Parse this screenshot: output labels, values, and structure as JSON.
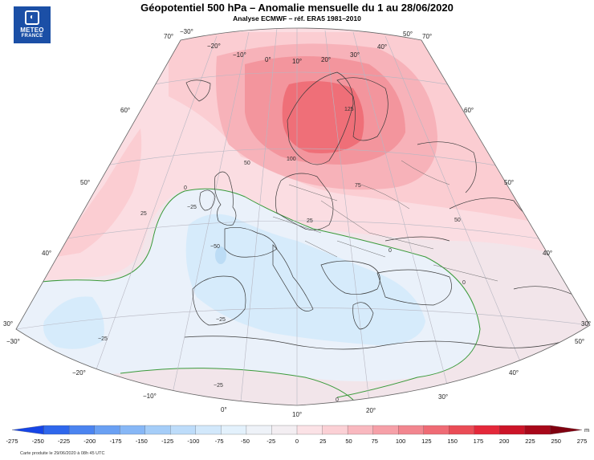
{
  "logo": {
    "line1": "METEO",
    "line2": "FRANCE"
  },
  "title": "Géopotentiel 500 hPa – Anomalie mensuelle du 1 au 28/06/2020",
  "subtitle": "Analyse ECMWF – réf. ERA5 1981–2010",
  "colorbar": {
    "ticks": [
      "-275",
      "-250",
      "-225",
      "-200",
      "-175",
      "-150",
      "-125",
      "-100",
      "-75",
      "-50",
      "-25",
      "0",
      "25",
      "50",
      "75",
      "100",
      "125",
      "150",
      "175",
      "200",
      "225",
      "250",
      "275"
    ],
    "colors": [
      "#1645e6",
      "#2f67ec",
      "#4b84f0",
      "#6aa0f3",
      "#87b7f6",
      "#a5cdf8",
      "#bddcfa",
      "#d2e8fb",
      "#e3f1fc",
      "#eef2f8",
      "#f3eef2",
      "#fbe2e6",
      "#fbd0d5",
      "#f9b8bf",
      "#f6a0a8",
      "#f2868f",
      "#ef6b75",
      "#ea4c56",
      "#e4283a",
      "#cc1428",
      "#a8081a",
      "#800010"
    ],
    "unit": "m",
    "colors_meaning": "anomaly shading"
  },
  "map": {
    "fills": {
      "outer_light": "#f2e5ea",
      "lev25": "#fbdde2",
      "lev50": "#fbcdd2",
      "lev75": "#f7b2b9",
      "lev100": "#f3959d",
      "lev125": "#ef6f78",
      "neg25": "#eaf1fa",
      "neg50": "#d6ebfb",
      "zero_line": "#3a9a3a"
    },
    "lat_labels": [
      "70°",
      "60°",
      "50°",
      "40°",
      "30°",
      "70°",
      "60°",
      "50°",
      "40°",
      "30°"
    ],
    "lon_labels": [
      "−30°",
      "−20°",
      "−10°",
      "0°",
      "10°",
      "20°",
      "30°",
      "40°",
      "50°",
      "−30°",
      "−20°",
      "−10°",
      "0°",
      "10°",
      "20°",
      "30°",
      "40°",
      "50°"
    ],
    "contour_labels": [
      "100",
      "125",
      "75",
      "50",
      "25",
      "25",
      "50",
      "0",
      "0",
      "0",
      "−25",
      "−25",
      "−25",
      "−50",
      "−25",
      "0"
    ]
  },
  "footer": "Carte produite le 29/06/2020 à 08h 45 UTC"
}
